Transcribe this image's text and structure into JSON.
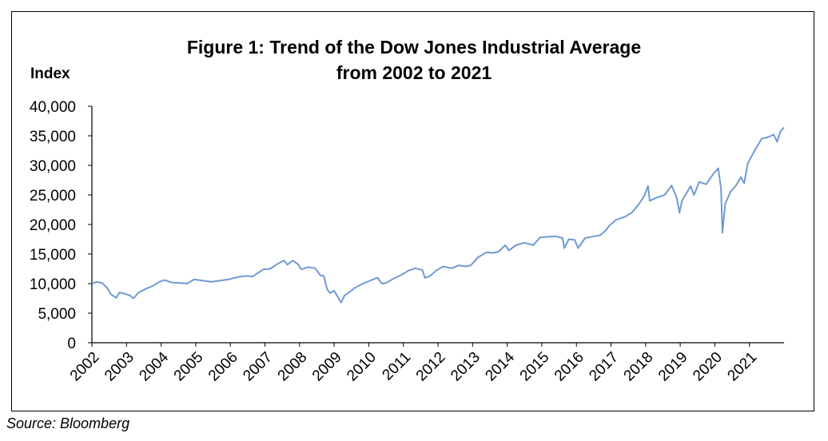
{
  "source_note": "Source: Bloomberg",
  "chart_data": {
    "type": "line",
    "title_line1": "Figure 1: Trend of the Dow Jones Industrial Average",
    "title_line2": "from 2002 to 2021",
    "ylabel": "Index",
    "xlabel": "",
    "ylim": [
      0,
      40000
    ],
    "yticks": [
      0,
      5000,
      10000,
      15000,
      20000,
      25000,
      30000,
      35000,
      40000
    ],
    "ytick_labels": [
      "0",
      "5,000",
      "10,000",
      "15,000",
      "20,000",
      "25,000",
      "30,000",
      "35,000",
      "40,000"
    ],
    "xlim": [
      2002.0,
      2022.0
    ],
    "xtick_labels": [
      "2002",
      "2003",
      "2004",
      "2005",
      "2006",
      "2007",
      "2008",
      "2009",
      "2010",
      "2011",
      "2012",
      "2013",
      "2014",
      "2015",
      "2016",
      "2017",
      "2018",
      "2019",
      "2020",
      "2021"
    ],
    "grid": false,
    "line_color": "#7199d3",
    "series": [
      {
        "values": [
          [
            2002.0,
            10000
          ],
          [
            2002.15,
            10300
          ],
          [
            2002.3,
            10100
          ],
          [
            2002.45,
            9200
          ],
          [
            2002.55,
            8200
          ],
          [
            2002.7,
            7600
          ],
          [
            2002.8,
            8500
          ],
          [
            2002.95,
            8300
          ],
          [
            2003.1,
            8000
          ],
          [
            2003.2,
            7500
          ],
          [
            2003.35,
            8500
          ],
          [
            2003.55,
            9100
          ],
          [
            2003.75,
            9600
          ],
          [
            2003.95,
            10300
          ],
          [
            2004.1,
            10600
          ],
          [
            2004.3,
            10200
          ],
          [
            2004.55,
            10100
          ],
          [
            2004.75,
            10000
          ],
          [
            2004.95,
            10700
          ],
          [
            2005.2,
            10500
          ],
          [
            2005.45,
            10300
          ],
          [
            2005.7,
            10500
          ],
          [
            2005.95,
            10700
          ],
          [
            2006.2,
            11100
          ],
          [
            2006.45,
            11300
          ],
          [
            2006.65,
            11200
          ],
          [
            2006.95,
            12400
          ],
          [
            2007.15,
            12500
          ],
          [
            2007.35,
            13300
          ],
          [
            2007.55,
            13900
          ],
          [
            2007.65,
            13200
          ],
          [
            2007.8,
            13900
          ],
          [
            2007.95,
            13300
          ],
          [
            2008.05,
            12400
          ],
          [
            2008.25,
            12800
          ],
          [
            2008.45,
            12600
          ],
          [
            2008.6,
            11400
          ],
          [
            2008.7,
            11300
          ],
          [
            2008.8,
            9000
          ],
          [
            2008.88,
            8400
          ],
          [
            2009.0,
            8800
          ],
          [
            2009.12,
            7600
          ],
          [
            2009.2,
            6800
          ],
          [
            2009.3,
            8000
          ],
          [
            2009.45,
            8600
          ],
          [
            2009.6,
            9300
          ],
          [
            2009.8,
            9900
          ],
          [
            2010.0,
            10400
          ],
          [
            2010.25,
            11000
          ],
          [
            2010.38,
            10000
          ],
          [
            2010.5,
            10100
          ],
          [
            2010.7,
            10800
          ],
          [
            2010.95,
            11500
          ],
          [
            2011.15,
            12200
          ],
          [
            2011.35,
            12600
          ],
          [
            2011.55,
            12300
          ],
          [
            2011.62,
            11000
          ],
          [
            2011.75,
            11200
          ],
          [
            2011.95,
            12200
          ],
          [
            2012.15,
            12900
          ],
          [
            2012.4,
            12600
          ],
          [
            2012.6,
            13100
          ],
          [
            2012.8,
            12900
          ],
          [
            2012.95,
            13100
          ],
          [
            2013.15,
            14400
          ],
          [
            2013.4,
            15300
          ],
          [
            2013.6,
            15200
          ],
          [
            2013.75,
            15400
          ],
          [
            2013.95,
            16500
          ],
          [
            2014.05,
            15600
          ],
          [
            2014.25,
            16500
          ],
          [
            2014.5,
            16900
          ],
          [
            2014.75,
            16500
          ],
          [
            2014.95,
            17800
          ],
          [
            2015.15,
            17900
          ],
          [
            2015.4,
            18000
          ],
          [
            2015.6,
            17700
          ],
          [
            2015.65,
            16000
          ],
          [
            2015.78,
            17500
          ],
          [
            2015.95,
            17400
          ],
          [
            2016.05,
            16000
          ],
          [
            2016.25,
            17700
          ],
          [
            2016.5,
            18000
          ],
          [
            2016.7,
            18200
          ],
          [
            2016.85,
            19000
          ],
          [
            2016.95,
            19800
          ],
          [
            2017.15,
            20800
          ],
          [
            2017.4,
            21300
          ],
          [
            2017.6,
            22000
          ],
          [
            2017.8,
            23400
          ],
          [
            2017.95,
            24700
          ],
          [
            2018.07,
            26500
          ],
          [
            2018.12,
            24000
          ],
          [
            2018.3,
            24500
          ],
          [
            2018.55,
            25000
          ],
          [
            2018.75,
            26600
          ],
          [
            2018.9,
            24500
          ],
          [
            2018.98,
            22000
          ],
          [
            2019.05,
            24000
          ],
          [
            2019.3,
            26500
          ],
          [
            2019.4,
            25000
          ],
          [
            2019.55,
            27200
          ],
          [
            2019.75,
            26800
          ],
          [
            2019.95,
            28500
          ],
          [
            2020.1,
            29500
          ],
          [
            2020.18,
            26000
          ],
          [
            2020.22,
            18600
          ],
          [
            2020.3,
            23500
          ],
          [
            2020.45,
            25500
          ],
          [
            2020.6,
            26500
          ],
          [
            2020.75,
            28000
          ],
          [
            2020.85,
            27000
          ],
          [
            2020.95,
            30300
          ],
          [
            2021.15,
            32500
          ],
          [
            2021.35,
            34500
          ],
          [
            2021.55,
            34800
          ],
          [
            2021.7,
            35200
          ],
          [
            2021.8,
            34000
          ],
          [
            2021.9,
            35800
          ],
          [
            2022.0,
            36400
          ]
        ]
      }
    ]
  }
}
